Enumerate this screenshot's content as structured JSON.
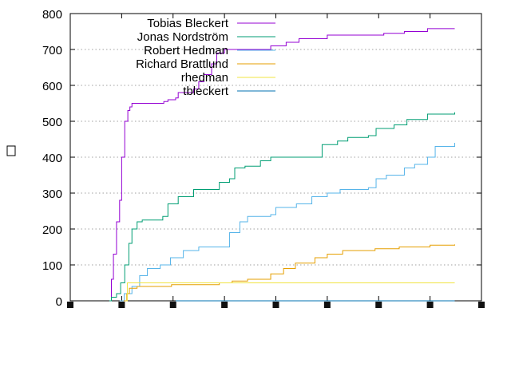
{
  "chart_data": {
    "type": "line",
    "step": true,
    "xlabel": "",
    "ylabel": "",
    "xlim": [
      0,
      8
    ],
    "ylim": [
      0,
      800
    ],
    "x_tick_count": 9,
    "y_ticks": [
      0,
      100,
      200,
      300,
      400,
      500,
      600,
      700,
      800
    ],
    "grid": "horizontal dotted",
    "legend": "top-left",
    "series": [
      {
        "name": "Tobias Bleckert",
        "color": "#9400d3",
        "points": [
          [
            0.76,
            0
          ],
          [
            0.8,
            60
          ],
          [
            0.84,
            130
          ],
          [
            0.9,
            220
          ],
          [
            0.96,
            280
          ],
          [
            1.0,
            400
          ],
          [
            1.06,
            500
          ],
          [
            1.12,
            530
          ],
          [
            1.16,
            540
          ],
          [
            1.2,
            550
          ],
          [
            1.82,
            555
          ],
          [
            1.9,
            560
          ],
          [
            2.05,
            565
          ],
          [
            2.1,
            580
          ],
          [
            2.4,
            590
          ],
          [
            2.5,
            610
          ],
          [
            2.6,
            630
          ],
          [
            2.75,
            660
          ],
          [
            2.85,
            690
          ],
          [
            3.0,
            700
          ],
          [
            3.9,
            710
          ],
          [
            4.2,
            720
          ],
          [
            4.45,
            730
          ],
          [
            5.0,
            740
          ],
          [
            6.1,
            745
          ],
          [
            6.5,
            750
          ],
          [
            6.95,
            758
          ],
          [
            7.48,
            758
          ]
        ]
      },
      {
        "name": "Jonas Nordström",
        "color": "#009e73",
        "points": [
          [
            0.76,
            0
          ],
          [
            0.8,
            10
          ],
          [
            0.9,
            20
          ],
          [
            0.98,
            50
          ],
          [
            1.06,
            100
          ],
          [
            1.14,
            160
          ],
          [
            1.2,
            200
          ],
          [
            1.3,
            220
          ],
          [
            1.4,
            225
          ],
          [
            1.8,
            235
          ],
          [
            1.9,
            270
          ],
          [
            2.1,
            290
          ],
          [
            2.4,
            310
          ],
          [
            2.9,
            330
          ],
          [
            3.1,
            340
          ],
          [
            3.2,
            370
          ],
          [
            3.4,
            375
          ],
          [
            3.7,
            390
          ],
          [
            3.9,
            400
          ],
          [
            4.75,
            400
          ],
          [
            4.9,
            435
          ],
          [
            5.2,
            445
          ],
          [
            5.4,
            455
          ],
          [
            5.8,
            460
          ],
          [
            5.95,
            480
          ],
          [
            6.3,
            490
          ],
          [
            6.55,
            505
          ],
          [
            6.95,
            520
          ],
          [
            7.48,
            525
          ]
        ]
      },
      {
        "name": "Robert Hedman",
        "color": "#56b4e9",
        "points": [
          [
            0.96,
            0
          ],
          [
            1.05,
            20
          ],
          [
            1.2,
            40
          ],
          [
            1.35,
            70
          ],
          [
            1.5,
            90
          ],
          [
            1.75,
            100
          ],
          [
            1.95,
            120
          ],
          [
            2.2,
            140
          ],
          [
            2.5,
            150
          ],
          [
            3.0,
            150
          ],
          [
            3.1,
            190
          ],
          [
            3.3,
            220
          ],
          [
            3.45,
            235
          ],
          [
            3.9,
            240
          ],
          [
            4.0,
            260
          ],
          [
            4.4,
            270
          ],
          [
            4.7,
            290
          ],
          [
            5.0,
            300
          ],
          [
            5.25,
            310
          ],
          [
            5.8,
            315
          ],
          [
            5.95,
            340
          ],
          [
            6.15,
            350
          ],
          [
            6.5,
            370
          ],
          [
            6.7,
            380
          ],
          [
            6.95,
            400
          ],
          [
            7.1,
            430
          ],
          [
            7.48,
            440
          ]
        ]
      },
      {
        "name": "Richard Brattlund",
        "color": "#e69f00",
        "points": [
          [
            1.04,
            0
          ],
          [
            1.1,
            20
          ],
          [
            1.15,
            35
          ],
          [
            1.3,
            40
          ],
          [
            1.97,
            45
          ],
          [
            2.9,
            50
          ],
          [
            3.15,
            55
          ],
          [
            3.45,
            60
          ],
          [
            3.9,
            75
          ],
          [
            4.15,
            90
          ],
          [
            4.38,
            105
          ],
          [
            4.76,
            120
          ],
          [
            5.0,
            130
          ],
          [
            5.3,
            140
          ],
          [
            5.93,
            145
          ],
          [
            6.4,
            150
          ],
          [
            7.0,
            155
          ],
          [
            7.48,
            157
          ]
        ]
      },
      {
        "name": "rhedman",
        "color": "#f0e442",
        "points": [
          [
            1.08,
            0
          ],
          [
            1.11,
            50
          ],
          [
            7.48,
            50
          ]
        ]
      },
      {
        "name": "tbleckert",
        "color": "#0072b2",
        "points": [
          [
            2.05,
            0
          ],
          [
            7.48,
            0
          ]
        ]
      }
    ]
  }
}
